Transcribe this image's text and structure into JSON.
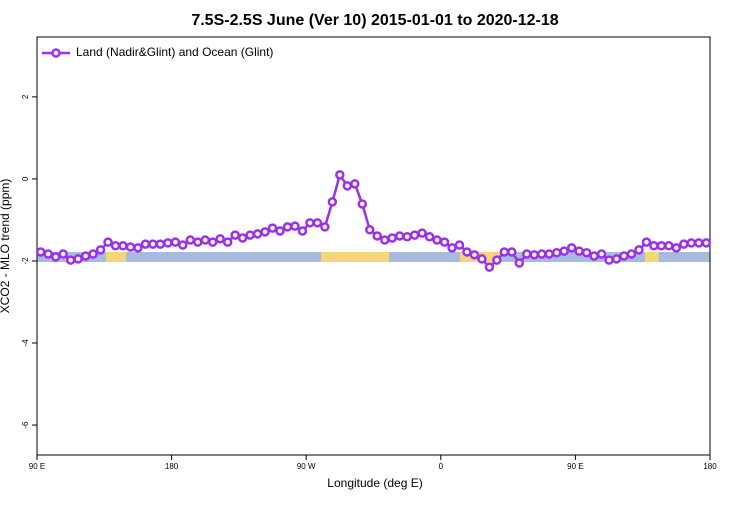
{
  "chart_data": {
    "type": "line",
    "title": "7.5S-2.5S June (Ver 10)   2015-01-01 to 2020-12-18",
    "x_label": "Longitude (deg E)",
    "y_label": "XCO2 - MLO trend (ppm)",
    "xlim": [
      90,
      540
    ],
    "xticks": [
      {
        "value": 90,
        "label": "90 E"
      },
      180,
      {
        "value": 270,
        "label": "90 W"
      },
      {
        "value": 360,
        "label": "0"
      },
      {
        "value": 450,
        "label": "90 E"
      },
      {
        "value": 540,
        "label": "180"
      }
    ],
    "ylim": [
      -6.73,
      3.46
    ],
    "yticks": [
      2,
      0,
      -2,
      -4,
      -6
    ],
    "x": [
      92.5,
      97.5,
      102.5,
      107.5,
      112.5,
      117.5,
      122.5,
      127.5,
      132.5,
      137.5,
      142.5,
      147.5,
      152.5,
      157.5,
      162.5,
      167.5,
      172.5,
      177.5,
      182.5,
      187.5,
      192.5,
      197.5,
      202.5,
      207.5,
      212.5,
      217.5,
      222.5,
      227.5,
      232.5,
      237.5,
      242.5,
      247.5,
      252.5,
      257.5,
      262.5,
      267.5,
      272.5,
      277.5,
      282.5,
      287.5,
      292.5,
      297.5,
      302.5,
      307.5,
      312.5,
      317.5,
      322.5,
      327.5,
      332.5,
      337.5,
      342.5,
      347.5,
      352.5,
      357.5,
      362.5,
      367.5,
      372.5,
      377.5,
      382.5,
      387.5,
      392.5,
      397.5,
      402.5,
      407.5,
      412.5,
      417.5,
      422.5,
      427.5,
      432.5,
      437.5,
      442.5,
      447.5,
      452.5,
      457.5,
      462.5,
      467.5,
      472.5,
      477.5,
      482.5,
      487.5,
      492.5,
      497.5,
      502.5,
      507.5,
      512.5,
      517.5,
      522.5,
      527.5,
      532.5,
      537.5
    ],
    "series": [
      {
        "name": "Land (Nadir&Glint) and Ocean (Glint)",
        "color": "#9b30e8",
        "values": [
          -1.78,
          -1.83,
          -1.9,
          -1.83,
          -1.98,
          -1.95,
          -1.88,
          -1.83,
          -1.73,
          -1.54,
          -1.63,
          -1.63,
          -1.66,
          -1.68,
          -1.59,
          -1.59,
          -1.59,
          -1.56,
          -1.54,
          -1.61,
          -1.49,
          -1.54,
          -1.49,
          -1.54,
          -1.46,
          -1.54,
          -1.37,
          -1.44,
          -1.37,
          -1.34,
          -1.29,
          -1.2,
          -1.27,
          -1.17,
          -1.15,
          -1.27,
          -1.07,
          -1.07,
          -1.17,
          -0.56,
          0.1,
          -0.17,
          -0.12,
          -0.61,
          -1.24,
          -1.39,
          -1.49,
          -1.44,
          -1.39,
          -1.41,
          -1.37,
          -1.32,
          -1.41,
          -1.49,
          -1.54,
          -1.68,
          -1.61,
          -1.78,
          -1.85,
          -1.95,
          -2.15,
          -1.98,
          -1.78,
          -1.78,
          -2.05,
          -1.83,
          -1.85,
          -1.83,
          -1.83,
          -1.8,
          -1.76,
          -1.68,
          -1.76,
          -1.8,
          -1.88,
          -1.83,
          -1.98,
          -1.95,
          -1.88,
          -1.83,
          -1.73,
          -1.54,
          -1.63,
          -1.63,
          -1.63,
          -1.68,
          -1.59,
          -1.56,
          -1.56,
          -1.56
        ]
      }
    ]
  }
}
